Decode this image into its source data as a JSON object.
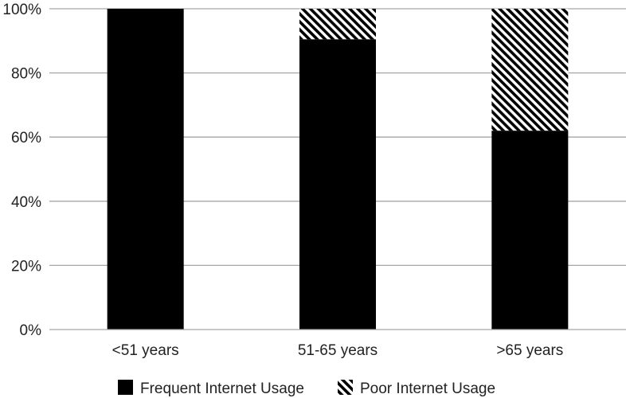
{
  "chart_data": {
    "type": "bar",
    "stacked": true,
    "categories": [
      "<51 years",
      "51-65 years",
      ">65 years"
    ],
    "series": [
      {
        "name": "Frequent Internet Usage",
        "values": [
          100,
          90.5,
          62
        ],
        "color": "#000000",
        "pattern": "solid"
      },
      {
        "name": "Poor Internet Usage",
        "values": [
          0,
          9.5,
          38
        ],
        "color": "#000000",
        "pattern": "diagonal-stripes"
      }
    ],
    "yticks": [
      "0%",
      "20%",
      "40%",
      "60%",
      "80%",
      "100%"
    ],
    "ylim": [
      0,
      100
    ],
    "grid": true,
    "legend": "bottom-center",
    "title": "",
    "xlabel": "",
    "ylabel": ""
  }
}
